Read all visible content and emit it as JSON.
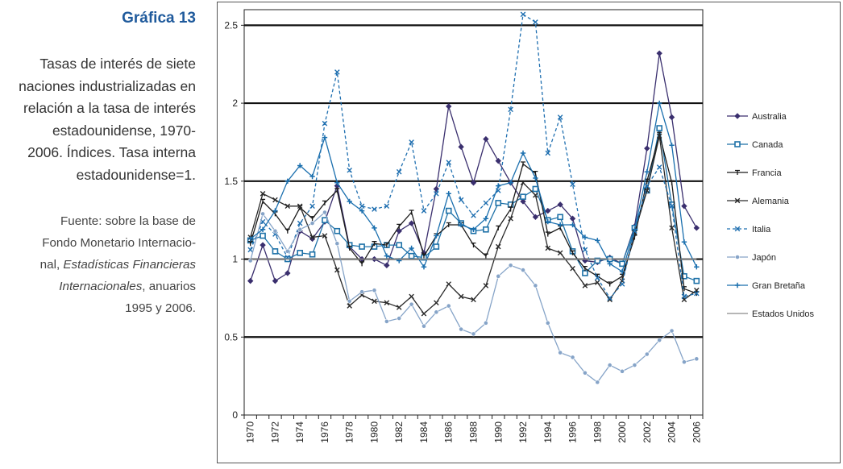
{
  "sidebar": {
    "title": "Gráfica 13",
    "description_lines": [
      "Tasas de interés de siete",
      "naciones industrializadas en",
      "relación a la tasa de interés",
      "estadounidense, 1970-",
      "2006. Índices. Tasa interna",
      "estadounidense=1."
    ],
    "source_lines": [
      {
        "text": "Fuente: sobre la base de",
        "italic": false
      },
      {
        "text": "Fondo Monetario Internacio-",
        "italic": false
      },
      {
        "parts": [
          {
            "text": "nal, ",
            "italic": false
          },
          {
            "text": "Estadísticas Financieras",
            "italic": true
          }
        ]
      },
      {
        "parts": [
          {
            "text": "Internacionales",
            "italic": true
          },
          {
            "text": ", anuarios",
            "italic": false
          }
        ]
      },
      {
        "text": "1995 y 2006.",
        "italic": false
      }
    ]
  },
  "chart_data": {
    "type": "line",
    "title": "",
    "xlabel": "",
    "ylabel": "",
    "ylim": [
      0,
      2.6
    ],
    "yticks": [
      0,
      0.5,
      1,
      1.5,
      2,
      2.5
    ],
    "ytick_labels": [
      "0",
      "0.5",
      "1",
      "1.5",
      "2",
      "2.5"
    ],
    "x": [
      1970,
      1971,
      1972,
      1973,
      1974,
      1975,
      1976,
      1977,
      1978,
      1979,
      1980,
      1981,
      1982,
      1983,
      1984,
      1985,
      1986,
      1987,
      1988,
      1989,
      1990,
      1991,
      1992,
      1993,
      1994,
      1995,
      1996,
      1997,
      1998,
      1999,
      2000,
      2001,
      2002,
      2003,
      2004,
      2005,
      2006
    ],
    "xtick_labels": [
      "1970",
      "1972",
      "1974",
      "1976",
      "1978",
      "1980",
      "1982",
      "1984",
      "1986",
      "1988",
      "1990",
      "1992",
      "1994",
      "1996",
      "1998",
      "2000",
      "2002",
      "2004",
      "2006"
    ],
    "legend_position": "right",
    "series": [
      {
        "name": "Australia",
        "color": "#3a2f6e",
        "marker": "diamond",
        "dashed": false,
        "values": [
          0.86,
          1.09,
          0.86,
          0.91,
          1.18,
          1.13,
          1.24,
          1.47,
          1.08,
          1.0,
          1.0,
          0.96,
          1.18,
          1.23,
          1.04,
          1.45,
          1.98,
          1.72,
          1.49,
          1.77,
          1.63,
          1.49,
          1.37,
          1.27,
          1.31,
          1.35,
          1.26,
          0.99,
          0.98,
          1.01,
          0.97,
          1.21,
          1.71,
          2.32,
          1.91,
          1.34,
          1.2
        ]
      },
      {
        "name": "Canada",
        "color": "#1f72a8",
        "marker": "square",
        "dashed": false,
        "values": [
          1.12,
          1.15,
          1.05,
          1.0,
          1.04,
          1.03,
          1.25,
          1.18,
          1.09,
          1.08,
          1.08,
          1.09,
          1.09,
          1.02,
          1.01,
          1.08,
          1.31,
          1.23,
          1.18,
          1.19,
          1.36,
          1.35,
          1.4,
          1.45,
          1.25,
          1.27,
          1.05,
          0.91,
          0.99,
          1.0,
          0.97,
          1.2,
          1.44,
          1.84,
          1.35,
          0.89,
          0.86
        ]
      },
      {
        "name": "Francia",
        "color": "#1a1a1a",
        "marker": "tee",
        "dashed": false,
        "values": [
          1.1,
          1.37,
          1.29,
          1.18,
          1.33,
          1.26,
          1.36,
          1.44,
          1.07,
          0.97,
          1.1,
          1.09,
          1.21,
          1.3,
          1.02,
          1.15,
          1.22,
          1.22,
          1.09,
          1.02,
          1.2,
          1.32,
          1.61,
          1.55,
          1.16,
          1.2,
          1.04,
          0.94,
          0.89,
          0.84,
          0.89,
          1.14,
          1.5,
          1.8,
          1.49,
          0.81,
          0.78
        ]
      },
      {
        "name": "Alemania",
        "color": "#2a2a2a",
        "marker": "x",
        "dashed": false,
        "values": [
          1.14,
          1.42,
          1.38,
          1.34,
          1.34,
          1.14,
          1.15,
          0.93,
          0.7,
          0.77,
          0.73,
          0.72,
          0.69,
          0.76,
          0.65,
          0.72,
          0.84,
          0.76,
          0.74,
          0.83,
          1.08,
          1.26,
          1.49,
          1.41,
          1.07,
          1.04,
          0.94,
          0.83,
          0.85,
          0.74,
          0.86,
          1.17,
          1.44,
          1.79,
          1.2,
          0.74,
          0.8
        ]
      },
      {
        "name": "Italia",
        "color": "#1f6fb0",
        "marker": "x",
        "dashed": true,
        "values": [
          1.06,
          1.24,
          1.16,
          1.01,
          1.23,
          1.34,
          1.87,
          2.2,
          1.57,
          1.34,
          1.32,
          1.34,
          1.56,
          1.75,
          1.31,
          1.42,
          1.62,
          1.38,
          1.28,
          1.36,
          1.44,
          1.96,
          2.57,
          2.52,
          1.68,
          1.91,
          1.48,
          1.06,
          0.88,
          0.75,
          0.84,
          1.18,
          1.47,
          1.59,
          1.34,
          0.76,
          0.78
        ]
      },
      {
        "name": "Japón",
        "color": "#86a4c8",
        "marker": "dot",
        "dashed": false,
        "values": [
          0.99,
          1.29,
          1.18,
          1.05,
          1.19,
          1.23,
          1.3,
          1.1,
          0.73,
          0.79,
          0.8,
          0.6,
          0.62,
          0.71,
          0.57,
          0.66,
          0.7,
          0.55,
          0.52,
          0.59,
          0.89,
          0.96,
          0.93,
          0.83,
          0.59,
          0.4,
          0.37,
          0.27,
          0.21,
          0.32,
          0.28,
          0.32,
          0.39,
          0.48,
          0.54,
          0.34,
          0.36
        ]
      },
      {
        "name": "Gran Bretaña",
        "color": "#1a6fae",
        "marker": "plus",
        "dashed": false,
        "values": [
          1.13,
          1.19,
          1.31,
          1.5,
          1.6,
          1.53,
          1.78,
          1.49,
          1.37,
          1.31,
          1.2,
          1.02,
          0.99,
          1.07,
          0.95,
          1.15,
          1.42,
          1.22,
          1.19,
          1.26,
          1.47,
          1.49,
          1.68,
          1.52,
          1.24,
          1.22,
          1.22,
          1.14,
          1.12,
          0.97,
          0.92,
          1.19,
          1.56,
          2.0,
          1.73,
          1.11,
          0.95
        ]
      },
      {
        "name": "Estados Unidos",
        "color": "#8a8a8a",
        "marker": "none",
        "dashed": false,
        "values": [
          1,
          1,
          1,
          1,
          1,
          1,
          1,
          1,
          1,
          1,
          1,
          1,
          1,
          1,
          1,
          1,
          1,
          1,
          1,
          1,
          1,
          1,
          1,
          1,
          1,
          1,
          1,
          1,
          1,
          1,
          1,
          1,
          1,
          1,
          1,
          1,
          1
        ]
      }
    ]
  }
}
